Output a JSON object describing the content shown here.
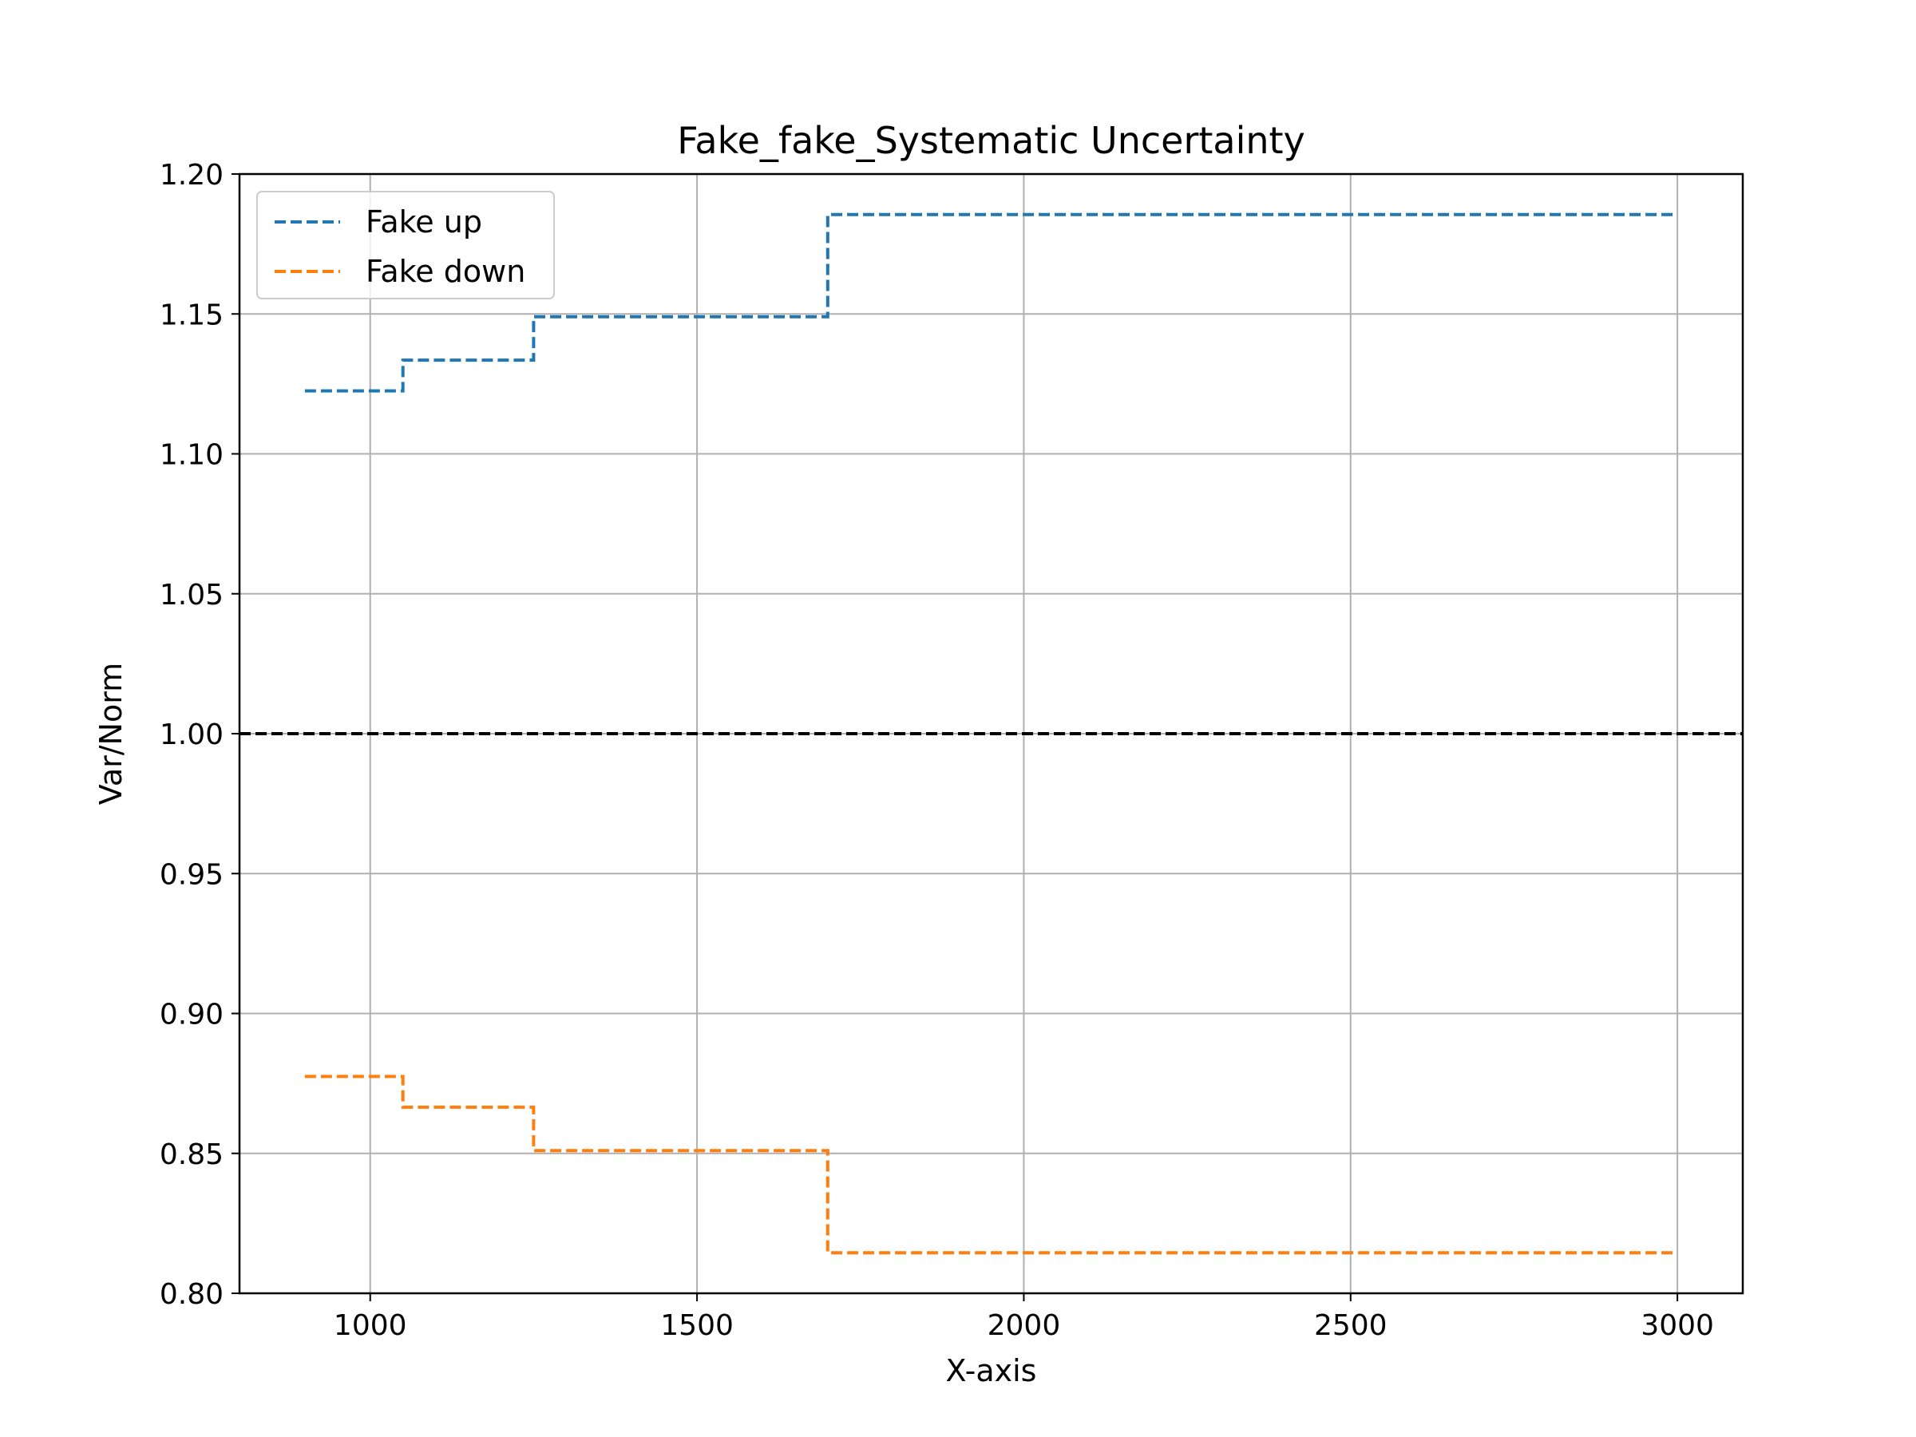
{
  "chart_data": {
    "type": "line",
    "title": "Fake_fake_Systematic Uncertainty",
    "xlabel": "X-axis",
    "ylabel": "Var/Norm",
    "xlim": [
      800,
      3100
    ],
    "ylim": [
      0.8,
      1.2
    ],
    "x_ticks": [
      1000,
      1500,
      2000,
      2500,
      3000
    ],
    "y_ticks": [
      0.8,
      0.85,
      0.9,
      0.95,
      1.0,
      1.05,
      1.1,
      1.15,
      1.2
    ],
    "x_tick_labels": [
      "1000",
      "1500",
      "2000",
      "2500",
      "3000"
    ],
    "y_tick_labels": [
      "0.80",
      "0.85",
      "0.90",
      "0.95",
      "1.00",
      "1.05",
      "1.10",
      "1.15",
      "1.20"
    ],
    "grid": true,
    "legend_position": "top-left",
    "reference_line": {
      "y": 1.0,
      "color": "#000000",
      "style": "dashed"
    },
    "series": [
      {
        "name": "Fake up",
        "color": "#1f77b4",
        "style": "dashed",
        "x": [
          900,
          1050,
          1050,
          1250,
          1250,
          1700,
          1700,
          3000
        ],
        "y": [
          1.1225,
          1.1225,
          1.1335,
          1.1335,
          1.149,
          1.149,
          1.1855,
          1.1855
        ]
      },
      {
        "name": "Fake down",
        "color": "#ff7f0e",
        "style": "dashed",
        "x": [
          900,
          1050,
          1050,
          1250,
          1250,
          1700,
          1700,
          3000
        ],
        "y": [
          0.8775,
          0.8775,
          0.8665,
          0.8665,
          0.851,
          0.851,
          0.8145,
          0.8145
        ]
      }
    ]
  }
}
